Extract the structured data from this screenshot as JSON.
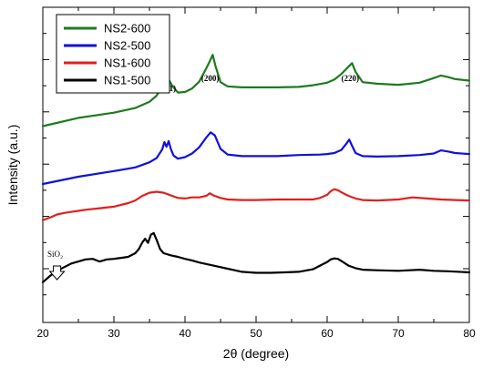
{
  "chart_data": {
    "type": "line",
    "title": "",
    "xlabel": "2θ (degree)",
    "ylabel": "Intensity (a.u.)",
    "xlim": [
      20,
      80
    ],
    "xticks": [
      "20",
      "30",
      "40",
      "50",
      "60",
      "70",
      "80"
    ],
    "y_tick_labels_shown": false,
    "grid": false,
    "legend_position": "top-left",
    "annotations": {
      "peaks": [
        {
          "text": "(111)",
          "x": 37.8
        },
        {
          "text": "(200)",
          "x": 43.8
        },
        {
          "text": "(220)",
          "x": 63.5
        }
      ],
      "marker": {
        "text": "SiO₂",
        "x": 22,
        "symbol": "down-arrow"
      }
    },
    "series": [
      {
        "name": "NS2-600",
        "color": "#1f7a1f",
        "x": [
          20,
          25,
          30,
          33,
          35,
          36,
          36.8,
          37.5,
          38.2,
          39,
          40,
          41,
          42,
          43,
          43.5,
          43.9,
          44.3,
          45,
          46,
          48,
          50,
          53,
          56,
          58,
          60,
          61,
          62,
          63,
          63.5,
          64,
          65,
          67,
          70,
          73,
          75,
          76,
          77,
          78,
          80
        ],
        "y": [
          5.0,
          6.6,
          7.6,
          8.5,
          9.7,
          10.9,
          12.6,
          14.5,
          12.8,
          11.5,
          11.6,
          12.3,
          13.6,
          16.2,
          17.6,
          18.8,
          16.6,
          13.5,
          12.7,
          12.5,
          12.5,
          12.5,
          12.6,
          12.9,
          13.4,
          14.0,
          15.1,
          16.5,
          17.2,
          15.5,
          13.5,
          13.2,
          13.0,
          13.4,
          14.3,
          14.8,
          14.5,
          14.1,
          13.8
        ]
      },
      {
        "name": "NS2-500",
        "color": "#1111d8",
        "x": [
          20,
          25,
          30,
          33,
          35,
          36,
          36.8,
          37.1,
          37.4,
          37.7,
          38,
          38.4,
          39,
          40,
          41,
          42,
          43,
          43.6,
          44.2,
          45,
          46,
          48,
          50,
          53,
          56,
          59,
          60,
          61,
          62,
          62.7,
          63.1,
          63.5,
          64,
          65,
          67,
          70,
          73,
          75,
          76,
          77,
          78,
          80
        ],
        "y": [
          -6.2,
          -4.8,
          -3.7,
          -3.0,
          -2.0,
          -1.2,
          0.5,
          1.9,
          1.0,
          2.1,
          0.6,
          -0.7,
          -1.3,
          -1.0,
          -0.3,
          0.9,
          2.8,
          3.8,
          3.2,
          0.6,
          -0.5,
          -0.8,
          -0.8,
          -0.8,
          -0.6,
          -0.5,
          -0.4,
          -0.2,
          0.4,
          1.6,
          2.4,
          1.2,
          -0.2,
          -0.8,
          -0.9,
          -0.8,
          -0.6,
          -0.3,
          0.3,
          0.1,
          -0.2,
          -0.4
        ]
      },
      {
        "name": "NS1-600",
        "color": "#e0201c",
        "x": [
          20,
          21,
          22,
          23,
          24,
          25,
          26,
          28,
          30,
          32,
          33,
          34,
          35,
          36,
          37,
          38,
          39,
          40,
          41,
          42,
          43,
          43.5,
          44,
          45,
          46,
          48,
          50,
          53,
          56,
          58,
          59,
          60,
          60.5,
          61,
          61.5,
          62,
          63,
          64,
          65,
          67,
          70,
          72,
          74,
          76,
          78,
          80
        ],
        "y": [
          -13.2,
          -12.7,
          -12.1,
          -11.8,
          -11.6,
          -11.4,
          -11.2,
          -10.9,
          -10.6,
          -9.9,
          -9.4,
          -8.5,
          -7.9,
          -7.7,
          -7.9,
          -8.4,
          -8.9,
          -9.0,
          -8.8,
          -8.8,
          -8.5,
          -8.0,
          -8.4,
          -8.9,
          -9.2,
          -9.3,
          -9.3,
          -9.2,
          -9.2,
          -9.2,
          -8.9,
          -8.3,
          -7.6,
          -7.2,
          -7.4,
          -7.8,
          -8.5,
          -9.0,
          -9.3,
          -9.4,
          -9.2,
          -8.8,
          -9.0,
          -9.2,
          -9.3,
          -9.4
        ]
      },
      {
        "name": "NS1-500",
        "color": "#000000",
        "x": [
          20,
          21,
          22,
          23,
          24,
          25,
          26,
          27,
          28,
          29,
          30,
          31,
          32,
          33,
          33.5,
          34,
          34.4,
          34.8,
          35.2,
          35.6,
          36,
          36.5,
          37,
          38,
          39,
          40,
          41,
          42,
          44,
          46,
          48,
          50,
          52,
          54,
          56,
          58,
          59,
          60,
          60.5,
          61,
          61.5,
          62,
          63,
          64,
          65,
          67,
          70,
          73,
          75,
          77,
          80
        ],
        "y": [
          -25.2,
          -24.0,
          -23.0,
          -22.3,
          -21.6,
          -21.2,
          -20.8,
          -20.7,
          -21.2,
          -20.8,
          -20.7,
          -20.5,
          -20.3,
          -19.6,
          -18.8,
          -17.5,
          -16.8,
          -17.6,
          -16.0,
          -15.7,
          -17.0,
          -18.8,
          -19.6,
          -20.0,
          -20.3,
          -20.7,
          -21.0,
          -21.4,
          -22.0,
          -22.6,
          -23.2,
          -23.4,
          -23.4,
          -23.3,
          -23.2,
          -22.7,
          -22.0,
          -21.3,
          -20.8,
          -20.6,
          -20.7,
          -21.1,
          -22.0,
          -22.5,
          -22.8,
          -22.9,
          -23.0,
          -22.8,
          -23.0,
          -23.1,
          -23.3
        ]
      }
    ]
  }
}
